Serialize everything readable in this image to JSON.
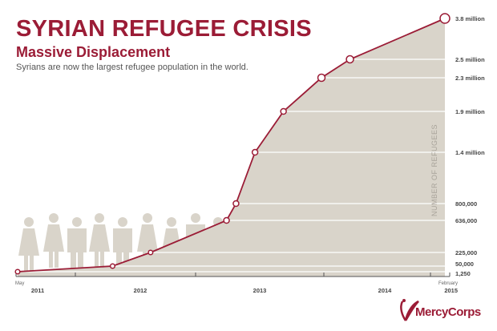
{
  "header": {
    "title": "SYRIAN REFUGEE CRISIS",
    "subtitle": "Massive Displacement",
    "description": "Syrians are now the largest refugee population in the world."
  },
  "chart_data": {
    "type": "area",
    "ylabel": "NUMBER OF REFUGEES",
    "y_scale": "non-linear (ticks at data values)",
    "y_ticks": [
      {
        "value": 1250,
        "label": "1,250"
      },
      {
        "value": 50000,
        "label": "50,000"
      },
      {
        "value": 225000,
        "label": "225,000"
      },
      {
        "value": 636000,
        "label": "636,000"
      },
      {
        "value": 800000,
        "label": "800,000"
      },
      {
        "value": 1400000,
        "label": "1.4 million"
      },
      {
        "value": 1900000,
        "label": "1.9 million"
      },
      {
        "value": 2300000,
        "label": "2.3 million"
      },
      {
        "value": 2500000,
        "label": "2.5 million"
      },
      {
        "value": 3800000,
        "label": "3.8 million"
      }
    ],
    "x_range": [
      "2011-05",
      "2015-02"
    ],
    "x_start_label": "May",
    "x_end_label": "February",
    "year_labels": [
      "2011",
      "2012",
      "2013",
      "2014",
      "2015"
    ],
    "points": [
      {
        "x": "2011-05",
        "y": 1250
      },
      {
        "x": "2012-03",
        "y": 50000
      },
      {
        "x": "2012-07",
        "y": 225000
      },
      {
        "x": "2013-03",
        "y": 636000
      },
      {
        "x": "2013-04",
        "y": 800000
      },
      {
        "x": "2013-06",
        "y": 1400000
      },
      {
        "x": "2013-09",
        "y": 1900000
      },
      {
        "x": "2014-01",
        "y": 2300000
      },
      {
        "x": "2014-04",
        "y": 2500000
      },
      {
        "x": "2015-02",
        "y": 3800000
      }
    ],
    "grid": true,
    "colors": {
      "line": "#9b1c36",
      "area": "#d9d4ca",
      "grid": "#ffffff",
      "figures": "#d9d4ca"
    }
  },
  "logo": {
    "text": "MercyCorps",
    "color": "#9b1c36"
  }
}
